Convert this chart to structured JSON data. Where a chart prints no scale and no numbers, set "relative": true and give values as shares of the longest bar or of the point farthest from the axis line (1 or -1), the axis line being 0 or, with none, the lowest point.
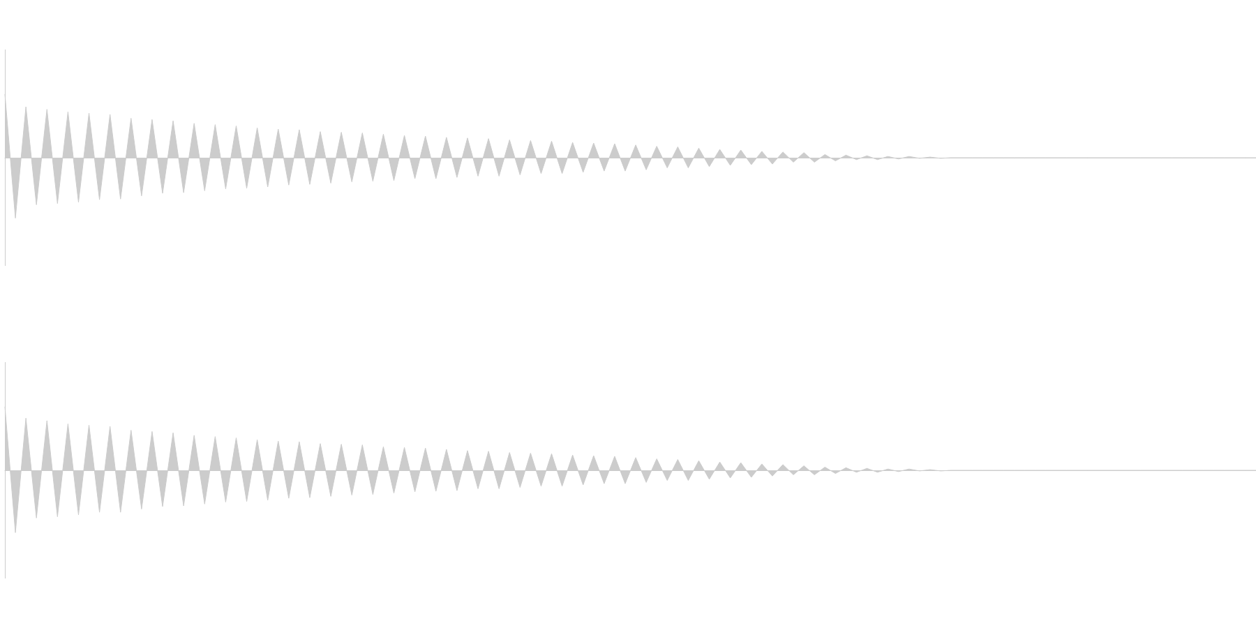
{
  "chart_data": [
    {
      "type": "area",
      "relative": true,
      "categories": [
        null,
        null,
        null,
        null,
        null,
        null,
        null,
        null,
        null,
        null,
        null,
        null,
        null,
        null,
        null,
        null,
        null,
        null,
        null,
        null,
        null,
        null,
        null,
        null,
        null,
        null,
        null,
        null,
        null,
        null,
        null,
        null,
        null,
        null,
        null,
        null,
        null,
        null,
        null,
        null,
        null,
        null,
        null,
        null,
        null,
        null,
        null,
        null,
        null,
        null,
        null,
        null,
        null,
        null,
        null,
        null,
        null,
        null,
        null,
        null,
        null,
        null,
        null,
        null,
        null,
        null,
        null,
        null,
        null,
        null,
        null,
        null,
        null,
        null,
        null,
        null,
        null,
        null,
        null,
        null,
        null,
        null,
        null,
        null,
        null,
        null,
        null,
        null,
        null,
        null,
        null,
        null,
        null,
        null,
        null,
        null,
        null,
        null,
        null,
        null,
        null,
        null,
        null,
        null,
        null,
        null,
        null,
        null,
        null,
        null,
        null,
        null,
        null,
        null,
        null,
        null,
        null,
        null,
        null,
        null
      ],
      "series": [
        {
          "color": "#cccccc",
          "values": [
            1.0,
            -0.95,
            0.8,
            -0.74,
            0.76,
            -0.72,
            0.72,
            -0.7,
            0.7,
            -0.66,
            0.68,
            -0.65,
            0.62,
            -0.6,
            0.6,
            -0.56,
            0.58,
            -0.55,
            0.54,
            -0.52,
            0.52,
            -0.49,
            0.5,
            -0.48,
            0.47,
            -0.46,
            0.45,
            -0.43,
            0.44,
            -0.42,
            0.41,
            -0.4,
            0.4,
            -0.38,
            0.39,
            -0.37,
            0.37,
            -0.36,
            0.35,
            -0.33,
            0.34,
            -0.33,
            0.32,
            -0.31,
            0.31,
            -0.29,
            0.3,
            -0.29,
            0.28,
            -0.27,
            0.27,
            -0.25,
            0.26,
            -0.25,
            0.24,
            -0.23,
            0.23,
            -0.21,
            0.22,
            -0.21,
            0.2,
            -0.19,
            0.18,
            -0.16,
            0.17,
            -0.16,
            0.15,
            -0.14,
            0.13,
            -0.12,
            0.12,
            -0.11,
            0.1,
            -0.1,
            0.09,
            -0.07,
            0.08,
            -0.07,
            0.05,
            -0.05,
            0.04,
            -0.03,
            0.03,
            -0.03,
            0.02,
            -0.02,
            0.02,
            -0.01,
            0.01,
            -0.01,
            0,
            0,
            0,
            0,
            0,
            0,
            0,
            0,
            0,
            0,
            0,
            0,
            0,
            0,
            0,
            0,
            0,
            0,
            0,
            0,
            0,
            0,
            0,
            0,
            0,
            0,
            0,
            0,
            0,
            0
          ]
        }
      ]
    },
    {
      "type": "area",
      "relative": true,
      "categories": [
        null,
        null,
        null,
        null,
        null,
        null,
        null,
        null,
        null,
        null,
        null,
        null,
        null,
        null,
        null,
        null,
        null,
        null,
        null,
        null,
        null,
        null,
        null,
        null,
        null,
        null,
        null,
        null,
        null,
        null,
        null,
        null,
        null,
        null,
        null,
        null,
        null,
        null,
        null,
        null,
        null,
        null,
        null,
        null,
        null,
        null,
        null,
        null,
        null,
        null,
        null,
        null,
        null,
        null,
        null,
        null,
        null,
        null,
        null,
        null,
        null,
        null,
        null,
        null,
        null,
        null,
        null,
        null,
        null,
        null,
        null,
        null,
        null,
        null,
        null,
        null,
        null,
        null,
        null,
        null,
        null,
        null,
        null,
        null,
        null,
        null,
        null,
        null,
        null,
        null,
        null,
        null,
        null,
        null,
        null,
        null,
        null,
        null,
        null,
        null,
        null,
        null,
        null,
        null,
        null,
        null,
        null,
        null,
        null,
        null,
        null,
        null,
        null,
        null,
        null,
        null,
        null,
        null,
        null,
        null
      ],
      "series": [
        {
          "color": "#cccccc",
          "values": [
            1.0,
            -0.98,
            0.82,
            -0.75,
            0.78,
            -0.73,
            0.73,
            -0.7,
            0.71,
            -0.66,
            0.69,
            -0.66,
            0.63,
            -0.61,
            0.61,
            -0.57,
            0.59,
            -0.56,
            0.55,
            -0.53,
            0.53,
            -0.5,
            0.51,
            -0.49,
            0.48,
            -0.47,
            0.46,
            -0.44,
            0.45,
            -0.43,
            0.42,
            -0.41,
            0.41,
            -0.39,
            0.4,
            -0.38,
            0.37,
            -0.36,
            0.36,
            -0.34,
            0.35,
            -0.33,
            0.33,
            -0.32,
            0.31,
            -0.29,
            0.3,
            -0.29,
            0.28,
            -0.27,
            0.27,
            -0.25,
            0.26,
            -0.25,
            0.24,
            -0.23,
            0.23,
            -0.21,
            0.22,
            -0.21,
            0.2,
            -0.19,
            0.18,
            -0.16,
            0.17,
            -0.16,
            0.15,
            -0.14,
            0.13,
            -0.12,
            0.12,
            -0.11,
            0.1,
            -0.09,
            0.09,
            -0.07,
            0.07,
            -0.07,
            0.05,
            -0.05,
            0.04,
            -0.03,
            0.03,
            -0.03,
            0.02,
            -0.02,
            0.02,
            -0.01,
            0.01,
            -0.01,
            0,
            0,
            0,
            0,
            0,
            0,
            0,
            0,
            0,
            0,
            0,
            0,
            0,
            0,
            0,
            0,
            0,
            0,
            0,
            0,
            0,
            0,
            0,
            0,
            0,
            0,
            0,
            0,
            0,
            0
          ]
        }
      ]
    }
  ]
}
